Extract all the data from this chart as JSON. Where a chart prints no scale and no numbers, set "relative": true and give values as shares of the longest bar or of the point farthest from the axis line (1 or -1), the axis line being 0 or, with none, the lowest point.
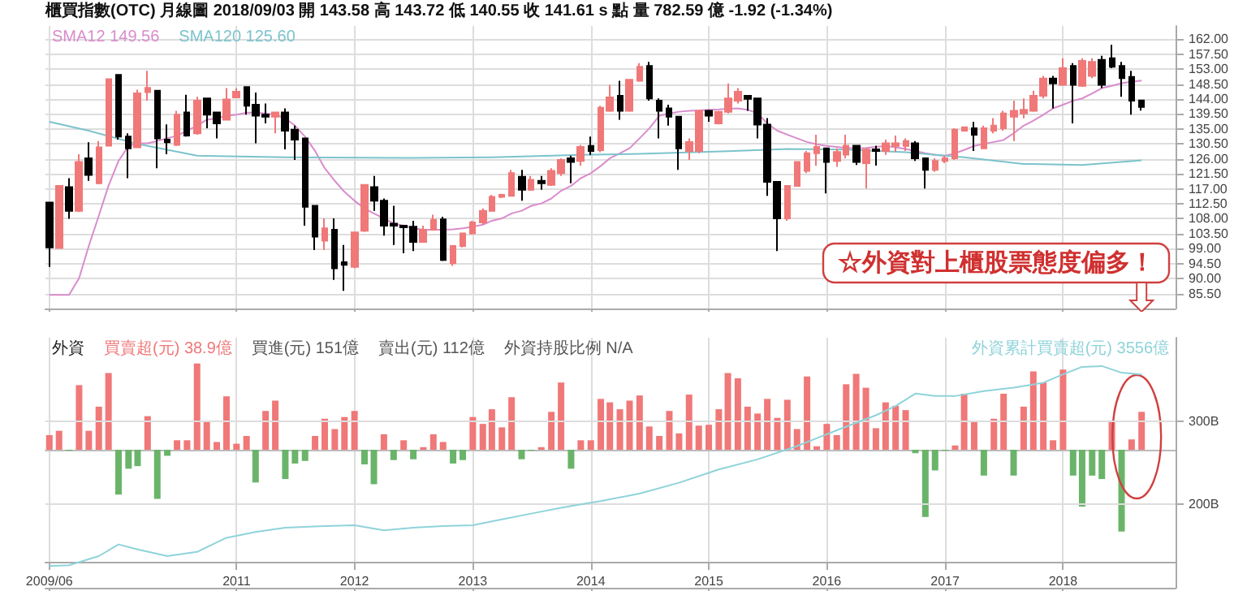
{
  "chart_data": [
    {
      "type": "candlestick",
      "title": "櫃買指數(OTC) 月線圖 2018/09/03 開 143.58 高 143.72 低 140.55 收 141.61 s 點 量 782.59 億 -1.92 (-1.34%)",
      "annotations": [
        "☆外資對上櫃股票態度偏多！"
      ],
      "x": [
        "2009-06",
        "2009-07",
        "2009-08",
        "2009-09",
        "2009-10",
        "2009-11",
        "2009-12",
        "2010-01",
        "2010-02",
        "2010-03",
        "2010-04",
        "2010-05",
        "2010-06",
        "2010-07",
        "2010-08",
        "2010-09",
        "2010-10",
        "2010-11",
        "2010-12",
        "2011-01",
        "2011-02",
        "2011-03",
        "2011-04",
        "2011-05",
        "2011-06",
        "2011-07",
        "2011-08",
        "2011-09",
        "2011-10",
        "2011-11",
        "2011-12",
        "2012-01",
        "2012-02",
        "2012-03",
        "2012-04",
        "2012-05",
        "2012-06",
        "2012-07",
        "2012-08",
        "2012-09",
        "2012-10",
        "2012-11",
        "2012-12",
        "2013-01",
        "2013-02",
        "2013-03",
        "2013-04",
        "2013-05",
        "2013-06",
        "2013-07",
        "2013-08",
        "2013-09",
        "2013-10",
        "2013-11",
        "2013-12",
        "2014-01",
        "2014-02",
        "2014-03",
        "2014-04",
        "2014-05",
        "2014-06",
        "2014-07",
        "2014-08",
        "2014-09",
        "2014-10",
        "2014-11",
        "2014-12",
        "2015-01",
        "2015-02",
        "2015-03",
        "2015-04",
        "2015-05",
        "2015-06",
        "2015-07",
        "2015-08",
        "2015-09",
        "2015-10",
        "2015-11",
        "2015-12",
        "2016-01",
        "2016-02",
        "2016-03",
        "2016-04",
        "2016-05",
        "2016-06",
        "2016-07",
        "2016-08",
        "2016-09",
        "2016-10",
        "2016-11",
        "2016-12",
        "2017-01",
        "2017-02",
        "2017-03",
        "2017-04",
        "2017-05",
        "2017-06",
        "2017-07",
        "2017-08",
        "2017-09",
        "2017-10",
        "2017-11",
        "2017-12",
        "2018-01",
        "2018-02",
        "2018-03",
        "2018-04",
        "2018-05",
        "2018-06",
        "2018-07",
        "2018-08",
        "2018-09"
      ],
      "ohlc": [
        [
          112.9,
          112.9,
          93.5,
          99.4
        ],
        [
          99.2,
          117.9,
          99,
          117.9
        ],
        [
          117.5,
          120.2,
          108,
          110.4
        ],
        [
          110.4,
          127.4,
          110,
          125.1
        ],
        [
          126.2,
          131,
          119.4,
          121.2
        ],
        [
          118.7,
          131.4,
          118.4,
          129.5
        ],
        [
          130,
          150,
          130,
          150
        ],
        [
          151.3,
          151.3,
          131.8,
          132.7
        ],
        [
          132.7,
          133.7,
          120.2,
          129.2
        ],
        [
          129.5,
          146.8,
          129.5,
          145.7
        ],
        [
          146.1,
          152.5,
          143.5,
          147.4
        ],
        [
          146.5,
          146.5,
          123.2,
          132.2
        ],
        [
          131.8,
          136.4,
          127.4,
          131
        ],
        [
          130.2,
          140.5,
          129.9,
          139.3
        ],
        [
          140,
          145.3,
          132.7,
          133
        ],
        [
          133.7,
          144.7,
          133.3,
          143.5
        ],
        [
          144.2,
          144.2,
          135.2,
          139.3
        ],
        [
          140,
          140,
          132.2,
          136.7
        ],
        [
          137.8,
          147.3,
          137.8,
          143.9
        ],
        [
          144.5,
          147.3,
          144.5,
          146.2
        ],
        [
          147.6,
          147.6,
          139.3,
          142
        ],
        [
          142.3,
          146,
          130.7,
          139
        ],
        [
          139.3,
          142.7,
          136.7,
          138.7
        ],
        [
          138.7,
          140,
          133.7,
          140
        ],
        [
          140,
          141.2,
          128.9,
          134.5
        ],
        [
          134.8,
          136,
          125.7,
          131.8
        ],
        [
          132.2,
          132.2,
          105.9,
          111.6
        ],
        [
          111.9,
          111.9,
          98.6,
          102.6
        ],
        [
          101.4,
          108.1,
          98.6,
          105.1
        ],
        [
          104.7,
          108.1,
          89.6,
          93.1
        ],
        [
          94.9,
          100.1,
          86.3,
          94.1
        ],
        [
          93.5,
          103.9,
          93.1,
          103.9
        ],
        [
          104.4,
          118.2,
          104,
          118.2
        ],
        [
          117.5,
          120.9,
          110.4,
          113.4
        ],
        [
          113.4,
          114.1,
          102.9,
          105.9
        ],
        [
          106.5,
          111.9,
          100.1,
          105.9
        ],
        [
          105.9,
          105.9,
          97.6,
          105.4
        ],
        [
          105.6,
          107.4,
          98.3,
          101
        ],
        [
          101,
          105.9,
          101,
          104.7
        ],
        [
          104.7,
          109.2,
          104.7,
          107.7
        ],
        [
          107.8,
          108.6,
          95.3,
          95.6
        ],
        [
          94.6,
          99.8,
          93.8,
          99.8
        ],
        [
          99.8,
          103.6,
          99.4,
          103.6
        ],
        [
          103.6,
          107.4,
          103.2,
          106.9
        ],
        [
          106.9,
          111.1,
          106.3,
          110.4
        ],
        [
          110.4,
          115.2,
          110.1,
          114.6
        ],
        [
          114.6,
          115.5,
          114.2,
          115.2
        ],
        [
          114.9,
          122.7,
          114.9,
          121.7
        ],
        [
          120.6,
          122.7,
          113.4,
          116.7
        ],
        [
          116.7,
          120.9,
          116.4,
          119.7
        ],
        [
          119.4,
          120.9,
          116.7,
          118.7
        ],
        [
          118.2,
          123.2,
          117.9,
          122.4
        ],
        [
          121.7,
          126.2,
          120.9,
          125.7
        ],
        [
          126.2,
          127,
          118.7,
          125.1
        ],
        [
          125.4,
          130.2,
          123.9,
          129.6
        ],
        [
          129.9,
          132.7,
          127.2,
          128.4
        ],
        [
          128.6,
          142,
          128,
          141.4
        ],
        [
          140.5,
          148.3,
          140.2,
          144.5
        ],
        [
          145,
          149.5,
          137.8,
          140.5
        ],
        [
          140.5,
          149.8,
          140.2,
          149.8
        ],
        [
          149.5,
          154.8,
          149.2,
          153.7
        ],
        [
          154,
          155.2,
          143.5,
          144.2
        ],
        [
          143.5,
          144.2,
          132.2,
          140.5
        ],
        [
          141.2,
          142.3,
          136,
          138.7
        ],
        [
          138.7,
          138.7,
          122.7,
          129.2
        ],
        [
          128.4,
          132.2,
          125.7,
          131.1
        ],
        [
          128.4,
          140.5,
          127.7,
          140.5
        ],
        [
          140.5,
          140.8,
          137.2,
          139
        ],
        [
          136.7,
          140.5,
          136.4,
          140.2
        ],
        [
          140.2,
          148.7,
          139.7,
          144.2
        ],
        [
          143.5,
          147.3,
          142.7,
          146.2
        ],
        [
          145,
          145,
          140.5,
          144.1
        ],
        [
          144.2,
          144.2,
          132.2,
          136.3
        ],
        [
          136.3,
          138.3,
          114.9,
          119.1
        ],
        [
          119.1,
          119.1,
          98.3,
          108.1
        ],
        [
          108.1,
          117.9,
          107.4,
          117.9
        ],
        [
          117.9,
          125.1,
          117.9,
          125.1
        ],
        [
          122.4,
          128.4,
          121.7,
          127.7
        ],
        [
          127.7,
          133.3,
          123.9,
          129.6
        ],
        [
          129.2,
          129.2,
          115.6,
          125.1
        ],
        [
          125.4,
          129.2,
          123.6,
          128.1
        ],
        [
          127.3,
          133.3,
          126.2,
          130
        ],
        [
          130,
          130.2,
          124.2,
          125.1
        ],
        [
          124.7,
          129.2,
          117.1,
          128.8
        ],
        [
          128.9,
          130,
          124,
          128.4
        ],
        [
          128.4,
          131.8,
          127.2,
          130.7
        ],
        [
          129.9,
          133,
          128.1,
          130.7
        ],
        [
          129.9,
          132.2,
          128.4,
          131.4
        ],
        [
          130.7,
          131.4,
          125.4,
          126.2
        ],
        [
          126.2,
          126.2,
          117.1,
          122.7
        ],
        [
          122.7,
          126.2,
          122.1,
          125.4
        ],
        [
          125.4,
          127,
          124.7,
          126.2
        ],
        [
          126.2,
          135.2,
          125.7,
          134.8
        ],
        [
          134.5,
          135.5,
          134.5,
          135.5
        ],
        [
          135.2,
          137.2,
          128.4,
          133.3
        ],
        [
          129.2,
          136,
          129.2,
          135.2
        ],
        [
          134.5,
          138.3,
          133.7,
          136
        ],
        [
          135.2,
          140.5,
          134.5,
          139.7
        ],
        [
          138.7,
          143.5,
          131.4,
          140.5
        ],
        [
          139.7,
          144.2,
          138.2,
          140.8
        ],
        [
          140.5,
          146.5,
          140.2,
          145
        ],
        [
          145,
          151,
          144.2,
          150.2
        ],
        [
          150.2,
          151,
          141.2,
          148.7
        ],
        [
          148.3,
          156.3,
          148,
          153.3
        ],
        [
          154,
          154.8,
          136.7,
          148.3
        ],
        [
          148,
          156.3,
          147.7,
          155.5
        ],
        [
          151,
          156.3,
          150.3,
          155.2
        ],
        [
          155.8,
          157,
          147.3,
          148.3
        ],
        [
          156.3,
          160.3,
          153.3,
          153.7
        ],
        [
          154,
          155.2,
          144.7,
          150.3
        ],
        [
          150.7,
          152.5,
          139.3,
          143.5
        ],
        [
          143.58,
          143.72,
          140.55,
          141.61
        ]
      ],
      "colors": [
        "#000000",
        "#f07878",
        "#000000",
        "#f07878",
        "#000000",
        "#f07878",
        "#f07878",
        "#000000",
        "#000000",
        "#f07878",
        "#f07878",
        "#000000",
        "#000000",
        "#f07878",
        "#000000",
        "#f07878",
        "#000000",
        "#000000",
        "#f07878",
        "#f07878",
        "#000000",
        "#000000",
        "#000000",
        "#f07878",
        "#000000",
        "#000000",
        "#000000",
        "#000000",
        "#f07878",
        "#000000",
        "#000000",
        "#f07878",
        "#f07878",
        "#000000",
        "#000000",
        "#000000",
        "#000000",
        "#000000",
        "#f07878",
        "#f07878",
        "#000000",
        "#f07878",
        "#f07878",
        "#f07878",
        "#f07878",
        "#f07878",
        "#f07878",
        "#f07878",
        "#000000",
        "#f07878",
        "#000000",
        "#f07878",
        "#f07878",
        "#000000",
        "#f07878",
        "#000000",
        "#f07878",
        "#f07878",
        "#000000",
        "#f07878",
        "#f07878",
        "#000000",
        "#000000",
        "#000000",
        "#000000",
        "#f07878",
        "#f07878",
        "#000000",
        "#f07878",
        "#f07878",
        "#f07878",
        "#000000",
        "#000000",
        "#000000",
        "#000000",
        "#f07878",
        "#f07878",
        "#f07878",
        "#f07878",
        "#000000",
        "#f07878",
        "#f07878",
        "#000000",
        "#f07878",
        "#000000",
        "#f07878",
        "#f07878",
        "#f07878",
        "#000000",
        "#000000",
        "#f07878",
        "#f07878",
        "#f07878",
        "#f07878",
        "#000000",
        "#f07878",
        "#f07878",
        "#f07878",
        "#f07878",
        "#f07878",
        "#f07878",
        "#f07878",
        "#000000",
        "#f07878",
        "#000000",
        "#f07878",
        "#f07878",
        "#000000",
        "#000000",
        "#000000",
        "#000000",
        "#000000"
      ],
      "series": [
        {
          "name": "SMA12 149.56",
          "type": "line",
          "color": "#d98ccc",
          "values": [
            85.1,
            85.1,
            85.1,
            90.1,
            99.8,
            108.9,
            117.9,
            125.4,
            129.9,
            130.7,
            130.7,
            131.4,
            132.2,
            133,
            134.5,
            136,
            137.8,
            138.2,
            139,
            139.3,
            139.9,
            139.9,
            139.7,
            139.3,
            138.2,
            136,
            132.7,
            128.4,
            123.2,
            119.4,
            116.1,
            113.4,
            111.1,
            109.6,
            108.1,
            106.6,
            105.9,
            105.1,
            104.7,
            104.7,
            104.7,
            104.8,
            105.1,
            105.6,
            106.2,
            107.4,
            108.1,
            109.6,
            110.4,
            111.9,
            112.6,
            114.1,
            116.4,
            117.9,
            120.2,
            121.7,
            123.9,
            126.2,
            127.7,
            129.2,
            132.2,
            135.2,
            139,
            139.7,
            140.2,
            140.5,
            140.6,
            140.8,
            140.9,
            141.1,
            141.2,
            140.8,
            139.7,
            136.7,
            134.5,
            133.3,
            132.2,
            131.1,
            130.4,
            129.9,
            129.6,
            129.3,
            129.2,
            129.3,
            129.6,
            129.9,
            129.5,
            129,
            128.4,
            127.7,
            127.2,
            126.9,
            127.7,
            128.7,
            129.9,
            130.5,
            131.1,
            131.7,
            133.7,
            136,
            137.5,
            139.3,
            141.2,
            142.3,
            143.5,
            144.2,
            145.7,
            147.3,
            148,
            148.8,
            149.2,
            149.6
          ]
        },
        {
          "name": "SMA120 125.60",
          "type": "line",
          "color": "#7cc3cc",
          "x": [
            "2009-06",
            "2009-10",
            "2010-03",
            "2010-09",
            "2011-06",
            "2012-06",
            "2013-03",
            "2013-12",
            "2014-06",
            "2015-03",
            "2015-09",
            "2016-03",
            "2016-09",
            "2017-03",
            "2017-09",
            "2018-03",
            "2018-09"
          ],
          "values": [
            137.2,
            134.5,
            130.5,
            127,
            126.5,
            126.3,
            126.5,
            127.2,
            127.5,
            128.3,
            129,
            128.8,
            128,
            126.5,
            124.5,
            124.2,
            125.6
          ]
        }
      ],
      "xlim": [
        "2009-05-20",
        "2018-12-15"
      ],
      "xticks": [
        {
          "value": "2009-06",
          "label": null
        },
        {
          "value": "2011-01",
          "label": null
        },
        {
          "value": "2012-01",
          "label": null
        },
        {
          "value": "2013-01",
          "label": null
        },
        {
          "value": "2014-01",
          "label": null
        },
        {
          "value": "2015-01",
          "label": null
        },
        {
          "value": "2016-01",
          "label": null
        },
        {
          "value": "2017-01",
          "label": null
        },
        {
          "value": "2018-01",
          "label": null
        }
      ],
      "ylim": [
        81,
        166
      ],
      "yticks": [
        {
          "value": 85.5,
          "label": "85.50"
        },
        {
          "value": 90,
          "label": "90.00"
        },
        {
          "value": 94.5,
          "label": "94.50"
        },
        {
          "value": 99,
          "label": "99.00"
        },
        {
          "value": 103.5,
          "label": "103.50"
        },
        {
          "value": 108,
          "label": "108.00"
        },
        {
          "value": 112.5,
          "label": "112.50"
        },
        {
          "value": 117,
          "label": "117.00"
        },
        {
          "value": 121.5,
          "label": "121.50"
        },
        {
          "value": 126,
          "label": "126.00"
        },
        {
          "value": 130.5,
          "label": "130.50"
        },
        {
          "value": 135,
          "label": "135.00"
        },
        {
          "value": 139.5,
          "label": "139.50"
        },
        {
          "value": 144,
          "label": "144.00"
        },
        {
          "value": 148.5,
          "label": "148.50"
        },
        {
          "value": 153,
          "label": "153.00"
        },
        {
          "value": 157.5,
          "label": "157.50"
        },
        {
          "value": 162,
          "label": "162.00"
        }
      ],
      "tick_labels": "y",
      "grid": true,
      "legend": "top left"
    },
    {
      "type": "bar",
      "relative": true,
      "annotations": [
        "外資",
        "買進(元) 151億",
        "賣出(元) 112億",
        "外資持股比例 N/A"
      ],
      "x": [
        "2009-06",
        "2009-07",
        "2009-08",
        "2009-09",
        "2009-10",
        "2009-11",
        "2009-12",
        "2010-01",
        "2010-02",
        "2010-03",
        "2010-04",
        "2010-05",
        "2010-06",
        "2010-07",
        "2010-08",
        "2010-09",
        "2010-10",
        "2010-11",
        "2010-12",
        "2011-01",
        "2011-02",
        "2011-03",
        "2011-04",
        "2011-05",
        "2011-06",
        "2011-07",
        "2011-08",
        "2011-09",
        "2011-10",
        "2011-11",
        "2011-12",
        "2012-01",
        "2012-02",
        "2012-03",
        "2012-04",
        "2012-05",
        "2012-06",
        "2012-07",
        "2012-08",
        "2012-09",
        "2012-10",
        "2012-11",
        "2012-12",
        "2013-01",
        "2013-02",
        "2013-03",
        "2013-04",
        "2013-05",
        "2013-06",
        "2013-07",
        "2013-08",
        "2013-09",
        "2013-10",
        "2013-11",
        "2013-12",
        "2014-01",
        "2014-02",
        "2014-03",
        "2014-04",
        "2014-05",
        "2014-06",
        "2014-07",
        "2014-08",
        "2014-09",
        "2014-10",
        "2014-11",
        "2014-12",
        "2015-01",
        "2015-02",
        "2015-03",
        "2015-04",
        "2015-05",
        "2015-06",
        "2015-07",
        "2015-08",
        "2015-09",
        "2015-10",
        "2015-11",
        "2015-12",
        "2016-01",
        "2016-02",
        "2016-03",
        "2016-04",
        "2016-05",
        "2016-06",
        "2016-07",
        "2016-08",
        "2016-09",
        "2016-10",
        "2016-11",
        "2016-12",
        "2017-01",
        "2017-02",
        "2017-03",
        "2017-04",
        "2017-05",
        "2017-06",
        "2017-07",
        "2017-08",
        "2017-09",
        "2017-10",
        "2017-11",
        "2017-12",
        "2018-01",
        "2018-02",
        "2018-03",
        "2018-04",
        "2018-05",
        "2018-06",
        "2018-07",
        "2018-08",
        "2018-09"
      ],
      "series": [
        {
          "name": "買賣超(元) 38.9億",
          "type": "bar",
          "color": "#f07878",
          "values": [
            0.17,
            0.22,
            -0.01,
            0.75,
            0.22,
            0.5,
            0.89,
            -0.52,
            -0.22,
            -0.19,
            0.39,
            -0.57,
            -0.07,
            0.11,
            0.11,
            1,
            0.34,
            0.09,
            0.62,
            0.07,
            0.16,
            -0.38,
            0.45,
            0.57,
            -0.34,
            -0.16,
            -0.13,
            0.16,
            0.36,
            0.24,
            0.38,
            0.45,
            -0.17,
            -0.4,
            0.18,
            -0.12,
            0.11,
            -0.11,
            0.03,
            0.18,
            0.09,
            -0.16,
            -0.12,
            0.38,
            0.3,
            0.47,
            0.26,
            0.61,
            -0.11,
            -0.01,
            0.03,
            0.44,
            0.78,
            -0.22,
            0.11,
            0.11,
            0.59,
            0.55,
            0.47,
            0.57,
            0.63,
            0.27,
            0.16,
            0.45,
            0.19,
            0.64,
            0.28,
            0.29,
            0.47,
            0.89,
            0.83,
            0.5,
            0.42,
            0.59,
            0.37,
            0.58,
            0.24,
            0.85,
            0.04,
            0.3,
            0.17,
            0.76,
            0.88,
            0.72,
            0.25,
            0.55,
            0.51,
            0.46,
            -0.04,
            -0.78,
            -0.24,
            -0.01,
            0.05,
            0.65,
            0.32,
            -0.3,
            0.36,
            0.65,
            -0.3,
            0.5,
            0.91,
            0.78,
            0.11,
            0.93,
            -0.3,
            -0.66,
            -0.3,
            -0.34,
            0.34,
            -0.95,
            0.12,
            0.44
          ],
          "colors": [
            "#f07878",
            "#f07878",
            "#6ab46a",
            "#f07878",
            "#f07878",
            "#f07878",
            "#f07878",
            "#6ab46a",
            "#6ab46a",
            "#6ab46a",
            "#f07878",
            "#6ab46a",
            "#6ab46a",
            "#f07878",
            "#f07878",
            "#f07878",
            "#f07878",
            "#f07878",
            "#f07878",
            "#f07878",
            "#f07878",
            "#6ab46a",
            "#f07878",
            "#f07878",
            "#6ab46a",
            "#6ab46a",
            "#6ab46a",
            "#f07878",
            "#f07878",
            "#f07878",
            "#f07878",
            "#f07878",
            "#6ab46a",
            "#6ab46a",
            "#f07878",
            "#6ab46a",
            "#f07878",
            "#6ab46a",
            "#f07878",
            "#f07878",
            "#f07878",
            "#6ab46a",
            "#6ab46a",
            "#f07878",
            "#f07878",
            "#f07878",
            "#f07878",
            "#f07878",
            "#6ab46a",
            "#6ab46a",
            "#f07878",
            "#f07878",
            "#f07878",
            "#6ab46a",
            "#f07878",
            "#f07878",
            "#f07878",
            "#f07878",
            "#f07878",
            "#f07878",
            "#f07878",
            "#f07878",
            "#f07878",
            "#f07878",
            "#f07878",
            "#f07878",
            "#f07878",
            "#f07878",
            "#f07878",
            "#f07878",
            "#f07878",
            "#f07878",
            "#f07878",
            "#f07878",
            "#f07878",
            "#f07878",
            "#f07878",
            "#f07878",
            "#f07878",
            "#f07878",
            "#f07878",
            "#f07878",
            "#f07878",
            "#f07878",
            "#f07878",
            "#f07878",
            "#f07878",
            "#f07878",
            "#6ab46a",
            "#6ab46a",
            "#6ab46a",
            "#6ab46a",
            "#f07878",
            "#f07878",
            "#f07878",
            "#6ab46a",
            "#f07878",
            "#f07878",
            "#6ab46a",
            "#f07878",
            "#f07878",
            "#f07878",
            "#f07878",
            "#f07878",
            "#6ab46a",
            "#6ab46a",
            "#6ab46a",
            "#6ab46a",
            "#f07878",
            "#6ab46a",
            "#f07878",
            "#f07878"
          ]
        }
      ],
      "xlim": [
        "2009-05-20",
        "2018-12-15"
      ],
      "xticks": [
        {
          "value": "2009-06",
          "label": "2009/06"
        },
        {
          "value": "2011-01",
          "label": "2011"
        },
        {
          "value": "2012-01",
          "label": "2012"
        },
        {
          "value": "2013-01",
          "label": "2013"
        },
        {
          "value": "2014-01",
          "label": "2014"
        },
        {
          "value": "2015-01",
          "label": "2015"
        },
        {
          "value": "2016-01",
          "label": "2016"
        },
        {
          "value": "2017-01",
          "label": "2017"
        },
        {
          "value": "2018-01",
          "label": "2018"
        }
      ],
      "grid": "x",
      "legend": "top left"
    },
    {
      "type": "line",
      "series": [
        {
          "name": "外資累計買賣超(元) 3556億",
          "color": "#8fd3da",
          "x": [
            "2009-06",
            "2009-08",
            "2009-11",
            "2010-01",
            "2010-03",
            "2010-06",
            "2010-09",
            "2010-12",
            "2011-03",
            "2011-06",
            "2011-10",
            "2012-01",
            "2012-04",
            "2012-07",
            "2012-10",
            "2013-01",
            "2013-04",
            "2013-07",
            "2013-10",
            "2013-12",
            "2014-02",
            "2014-06",
            "2014-10",
            "2015-02",
            "2015-06",
            "2015-10",
            "2016-02",
            "2016-06",
            "2016-08",
            "2016-10",
            "2016-12",
            "2017-02",
            "2017-05",
            "2017-08",
            "2017-11",
            "2018-01",
            "2018-03",
            "2018-05",
            "2018-07",
            "2018-09"
          ],
          "values": [
            126,
            127,
            138,
            152,
            146,
            138,
            143,
            160,
            167,
            172,
            174,
            175,
            169,
            172,
            174,
            175,
            182,
            189,
            196,
            200,
            204,
            213,
            226,
            242,
            254,
            270,
            289,
            307,
            318,
            333,
            330,
            330,
            336,
            340,
            346,
            356,
            365,
            366,
            358,
            356
          ]
        }
      ],
      "xlim": [
        "2009-05-20",
        "2018-12-15"
      ],
      "xticks": [
        {
          "value": "2009-06",
          "label": null
        },
        {
          "value": "2011-01",
          "label": null
        },
        {
          "value": "2012-01",
          "label": null
        },
        {
          "value": "2013-01",
          "label": null
        },
        {
          "value": "2014-01",
          "label": null
        },
        {
          "value": "2015-01",
          "label": null
        },
        {
          "value": "2016-01",
          "label": null
        },
        {
          "value": "2017-01",
          "label": null
        },
        {
          "value": "2018-01",
          "label": null
        }
      ],
      "ylim": [
        100,
        400
      ],
      "yticks": [
        {
          "value": 200,
          "label": "200B"
        },
        {
          "value": 300,
          "label": "300B"
        }
      ],
      "tick_labels": "y",
      "grid": "y",
      "legend": "top right"
    }
  ]
}
